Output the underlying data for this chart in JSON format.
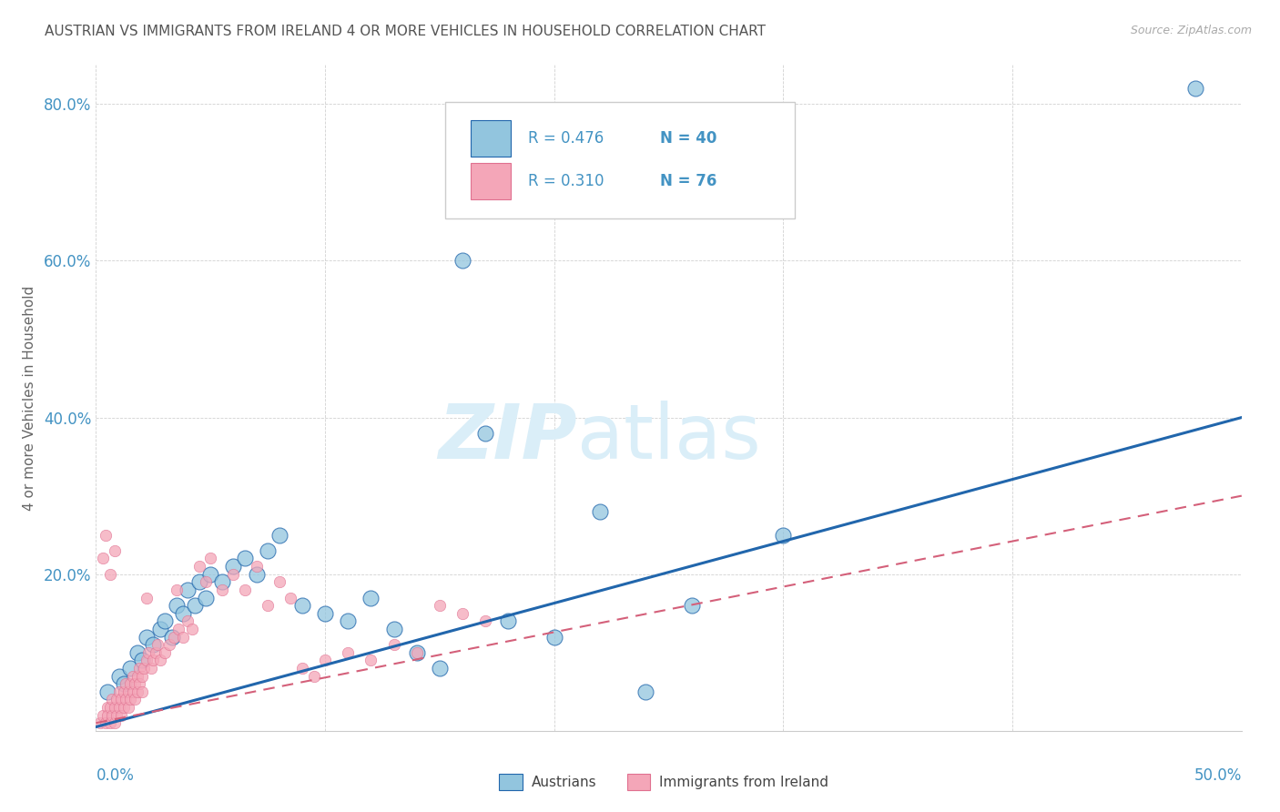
{
  "title": "AUSTRIAN VS IMMIGRANTS FROM IRELAND 4 OR MORE VEHICLES IN HOUSEHOLD CORRELATION CHART",
  "source": "Source: ZipAtlas.com",
  "ylabel": "4 or more Vehicles in Household",
  "xlim": [
    0.0,
    0.5
  ],
  "ylim": [
    0.0,
    0.85
  ],
  "yticks": [
    0.0,
    0.2,
    0.4,
    0.6,
    0.8
  ],
  "ytick_labels": [
    "",
    "20.0%",
    "40.0%",
    "60.0%",
    "80.0%"
  ],
  "xticks": [
    0.0,
    0.1,
    0.2,
    0.3,
    0.4,
    0.5
  ],
  "blue_color": "#92c5de",
  "pink_color": "#f4a6b8",
  "blue_line_color": "#2166ac",
  "pink_line_color": "#d6604d",
  "title_color": "#555555",
  "source_color": "#aaaaaa",
  "axis_label_color": "#4393c3",
  "watermark_color": "#daeef8",
  "blue_scatter_x": [
    0.005,
    0.01,
    0.012,
    0.015,
    0.018,
    0.02,
    0.022,
    0.025,
    0.028,
    0.03,
    0.033,
    0.035,
    0.038,
    0.04,
    0.043,
    0.045,
    0.048,
    0.05,
    0.055,
    0.06,
    0.065,
    0.07,
    0.075,
    0.08,
    0.09,
    0.1,
    0.11,
    0.12,
    0.13,
    0.14,
    0.15,
    0.16,
    0.17,
    0.18,
    0.2,
    0.22,
    0.24,
    0.26,
    0.3,
    0.48
  ],
  "blue_scatter_y": [
    0.05,
    0.07,
    0.06,
    0.08,
    0.1,
    0.09,
    0.12,
    0.11,
    0.13,
    0.14,
    0.12,
    0.16,
    0.15,
    0.18,
    0.16,
    0.19,
    0.17,
    0.2,
    0.19,
    0.21,
    0.22,
    0.2,
    0.23,
    0.25,
    0.16,
    0.15,
    0.14,
    0.17,
    0.13,
    0.1,
    0.08,
    0.6,
    0.38,
    0.14,
    0.12,
    0.28,
    0.05,
    0.16,
    0.25,
    0.82
  ],
  "pink_scatter_x": [
    0.002,
    0.003,
    0.004,
    0.005,
    0.005,
    0.006,
    0.006,
    0.007,
    0.007,
    0.008,
    0.008,
    0.009,
    0.009,
    0.01,
    0.01,
    0.011,
    0.011,
    0.012,
    0.012,
    0.013,
    0.013,
    0.014,
    0.014,
    0.015,
    0.015,
    0.016,
    0.016,
    0.017,
    0.017,
    0.018,
    0.018,
    0.019,
    0.019,
    0.02,
    0.02,
    0.021,
    0.022,
    0.023,
    0.024,
    0.025,
    0.026,
    0.027,
    0.028,
    0.03,
    0.032,
    0.034,
    0.036,
    0.038,
    0.04,
    0.042,
    0.045,
    0.048,
    0.05,
    0.055,
    0.06,
    0.065,
    0.07,
    0.075,
    0.08,
    0.085,
    0.09,
    0.095,
    0.1,
    0.11,
    0.12,
    0.13,
    0.14,
    0.15,
    0.16,
    0.17,
    0.003,
    0.004,
    0.006,
    0.008,
    0.022,
    0.035
  ],
  "pink_scatter_y": [
    0.01,
    0.02,
    0.01,
    0.03,
    0.02,
    0.03,
    0.01,
    0.04,
    0.02,
    0.03,
    0.01,
    0.04,
    0.02,
    0.05,
    0.03,
    0.04,
    0.02,
    0.05,
    0.03,
    0.06,
    0.04,
    0.05,
    0.03,
    0.06,
    0.04,
    0.07,
    0.05,
    0.06,
    0.04,
    0.07,
    0.05,
    0.08,
    0.06,
    0.07,
    0.05,
    0.08,
    0.09,
    0.1,
    0.08,
    0.09,
    0.1,
    0.11,
    0.09,
    0.1,
    0.11,
    0.12,
    0.13,
    0.12,
    0.14,
    0.13,
    0.21,
    0.19,
    0.22,
    0.18,
    0.2,
    0.18,
    0.21,
    0.16,
    0.19,
    0.17,
    0.08,
    0.07,
    0.09,
    0.1,
    0.09,
    0.11,
    0.1,
    0.16,
    0.15,
    0.14,
    0.22,
    0.25,
    0.2,
    0.23,
    0.17,
    0.18
  ],
  "blue_line_x0": 0.0,
  "blue_line_x1": 0.5,
  "blue_line_y0": 0.005,
  "blue_line_y1": 0.4,
  "pink_line_x0": 0.0,
  "pink_line_x1": 0.5,
  "pink_line_y0": 0.01,
  "pink_line_y1": 0.3
}
